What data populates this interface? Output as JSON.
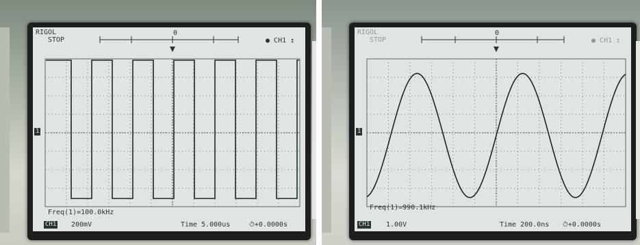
{
  "panels": [
    {
      "brand": "RIGOL",
      "status": "STOP",
      "trigger_marker": "0",
      "channel_indicator": "CH1",
      "ground_marker": "1",
      "measurement": "Freq(1)=100.0kHz",
      "channel_label": "CH1",
      "volts_per_div": "200mV",
      "timebase": "Time 5.000us",
      "trigger_offset": "+0.0000s",
      "waveform": "square"
    },
    {
      "brand": "RIGOL",
      "status": "STOP",
      "trigger_marker": "0",
      "channel_indicator": "CH1",
      "ground_marker": "1",
      "measurement": "Freq(1)=990.1kHz",
      "channel_label": "CH1",
      "volts_per_div": "1.00V",
      "timebase": "Time 200.0ns",
      "trigger_offset": "+0.0000s",
      "waveform": "sine"
    }
  ]
}
